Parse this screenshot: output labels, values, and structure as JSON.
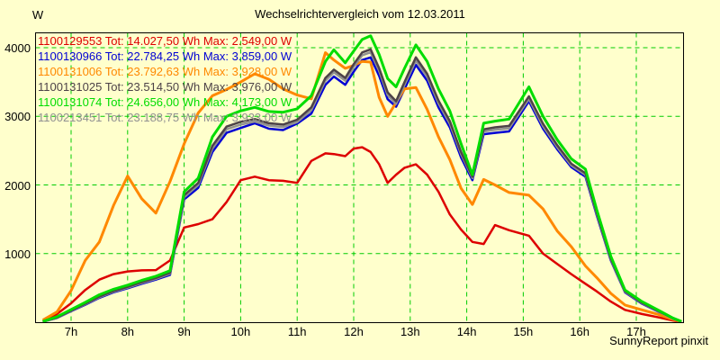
{
  "page": {
    "title": "Wechselrichtervergleich vom 12.03.2011",
    "y_axis_unit": "W",
    "footer_credit": "SunnyReport pinxit"
  },
  "colors": {
    "background": "#ffffcc",
    "grid": "#00cc00",
    "axis_frame": "#000000"
  },
  "chart_data": {
    "type": "line",
    "title": "Wechselrichtervergleich vom 12.03.2011",
    "xlabel": "",
    "ylabel": "W",
    "grid": true,
    "legend_position": "top-left-inside",
    "ylim": [
      0,
      4220
    ],
    "xlim_hours": [
      6.36,
      17.83
    ],
    "y_ticks": [
      1000,
      2000,
      3000,
      4000
    ],
    "x_ticks": [
      {
        "hour": 7,
        "label": "7h"
      },
      {
        "hour": 8,
        "label": "8h"
      },
      {
        "hour": 9,
        "label": "9h"
      },
      {
        "hour": 10,
        "label": "10h"
      },
      {
        "hour": 11,
        "label": "11h"
      },
      {
        "hour": 12,
        "label": "12h"
      },
      {
        "hour": 13,
        "label": "13h"
      },
      {
        "hour": 14,
        "label": "14h"
      },
      {
        "hour": 15,
        "label": "15h"
      },
      {
        "hour": 16,
        "label": "16h"
      },
      {
        "hour": 17,
        "label": "17h"
      }
    ],
    "x_hours": [
      6.5,
      6.75,
      7.0,
      7.25,
      7.5,
      7.75,
      8.0,
      8.25,
      8.5,
      8.75,
      9.0,
      9.25,
      9.5,
      9.75,
      10.0,
      10.25,
      10.5,
      10.75,
      11.0,
      11.25,
      11.5,
      11.65,
      11.85,
      12.0,
      12.15,
      12.3,
      12.45,
      12.6,
      12.75,
      12.9,
      13.1,
      13.3,
      13.5,
      13.7,
      13.9,
      14.1,
      14.3,
      14.5,
      14.75,
      15.1,
      15.35,
      15.6,
      15.85,
      16.1,
      16.3,
      16.55,
      16.8,
      17.1,
      17.4,
      17.65,
      17.8
    ],
    "series": [
      {
        "id": "1100129553",
        "legend_label": "1100129553 Tot: 14.027,50 Wh Max: 2.549,00 W",
        "total_wh": "14.027,50",
        "max_w": "2.549,00",
        "color": "#dd0000",
        "line_width": 2.5,
        "values": [
          5,
          120,
          275,
          470,
          620,
          700,
          740,
          755,
          760,
          900,
          1380,
          1430,
          1500,
          1750,
          2070,
          2120,
          2070,
          2060,
          2030,
          2350,
          2460,
          2450,
          2420,
          2530,
          2549,
          2480,
          2300,
          2030,
          2150,
          2250,
          2300,
          2150,
          1900,
          1570,
          1350,
          1170,
          1140,
          1415,
          1340,
          1260,
          1000,
          850,
          700,
          560,
          450,
          300,
          180,
          120,
          70,
          25,
          3
        ]
      },
      {
        "id": "1100130966",
        "legend_label": "1100130966 Tot: 22.784,25 Wh Max: 3.859,00 W",
        "total_wh": "22.784,25",
        "max_w": "3.859,00",
        "color": "#0000d4",
        "line_width": 2.5,
        "values": [
          6,
          62,
          160,
          255,
          355,
          435,
          495,
          560,
          620,
          690,
          1790,
          1960,
          2480,
          2760,
          2830,
          2900,
          2820,
          2800,
          2895,
          3040,
          3460,
          3580,
          3460,
          3650,
          3820,
          3859,
          3590,
          3250,
          3140,
          3400,
          3750,
          3520,
          3130,
          2840,
          2400,
          2070,
          2740,
          2760,
          2780,
          3220,
          2820,
          2520,
          2260,
          2120,
          1560,
          900,
          435,
          270,
          150,
          45,
          6
        ]
      },
      {
        "id": "1100131006",
        "legend_label": "1100131006 Tot: 23.792,63 Wh Max: 3.928,00 W",
        "total_wh": "23.792,63",
        "max_w": "3.928,00",
        "color": "#ff8800",
        "line_width": 3,
        "values": [
          30,
          150,
          460,
          900,
          1170,
          1700,
          2130,
          1800,
          1590,
          2050,
          2600,
          3050,
          3300,
          3390,
          3500,
          3620,
          3540,
          3400,
          3310,
          3255,
          3928,
          3820,
          3700,
          3740,
          3800,
          3790,
          3275,
          3000,
          3200,
          3400,
          3420,
          3100,
          2700,
          2370,
          1950,
          1716,
          2080,
          2000,
          1890,
          1850,
          1650,
          1330,
          1100,
          820,
          650,
          420,
          250,
          180,
          110,
          40,
          5
        ]
      },
      {
        "id": "1100131025",
        "legend_label": "1100131025 Tot: 23.514,50 Wh Max: 3.976,00 W",
        "total_wh": "23.514,50",
        "max_w": "3.976,00",
        "color": "#4d4248",
        "line_width": 2.5,
        "values": [
          8,
          70,
          170,
          270,
          375,
          455,
          515,
          585,
          645,
          720,
          1850,
          2030,
          2570,
          2850,
          2920,
          2960,
          2900,
          2880,
          2950,
          3130,
          3560,
          3680,
          3560,
          3760,
          3930,
          3976,
          3700,
          3350,
          3220,
          3500,
          3860,
          3620,
          3230,
          2930,
          2480,
          2120,
          2810,
          2840,
          2860,
          3290,
          2890,
          2580,
          2310,
          2170,
          1600,
          930,
          455,
          285,
          160,
          55,
          8
        ]
      },
      {
        "id": "1100131074",
        "legend_label": "1100131074 Tot: 24.656,00 Wh Max: 4.173,00 W",
        "total_wh": "24.656,00",
        "max_w": "4.173,00",
        "color": "#00dd00",
        "line_width": 3,
        "values": [
          10,
          80,
          185,
          290,
          400,
          480,
          540,
          610,
          670,
          750,
          1900,
          2100,
          2700,
          3000,
          3080,
          3130,
          3070,
          3060,
          3110,
          3300,
          3800,
          3970,
          3780,
          3950,
          4120,
          4173,
          3900,
          3550,
          3430,
          3700,
          4040,
          3800,
          3400,
          3080,
          2600,
          2150,
          2900,
          2930,
          2960,
          3430,
          3000,
          2660,
          2380,
          2230,
          1640,
          960,
          470,
          300,
          170,
          60,
          10
        ]
      },
      {
        "id": "1100213451",
        "legend_label": "1100213451 Tot: 23.188,75 Wh Max: 3.933,00 W",
        "total_wh": "23.188,75",
        "max_w": "3.933,00",
        "color": "#919191",
        "line_width": 2.5,
        "values": [
          7,
          66,
          165,
          262,
          365,
          445,
          505,
          572,
          632,
          705,
          1820,
          2000,
          2530,
          2810,
          2880,
          2925,
          2865,
          2845,
          2915,
          3090,
          3520,
          3640,
          3520,
          3720,
          3890,
          3933,
          3660,
          3310,
          3180,
          3460,
          3810,
          3580,
          3190,
          2890,
          2450,
          2100,
          2780,
          2805,
          2825,
          3255,
          2855,
          2550,
          2285,
          2145,
          1580,
          915,
          445,
          278,
          155,
          50,
          7
        ]
      }
    ]
  }
}
